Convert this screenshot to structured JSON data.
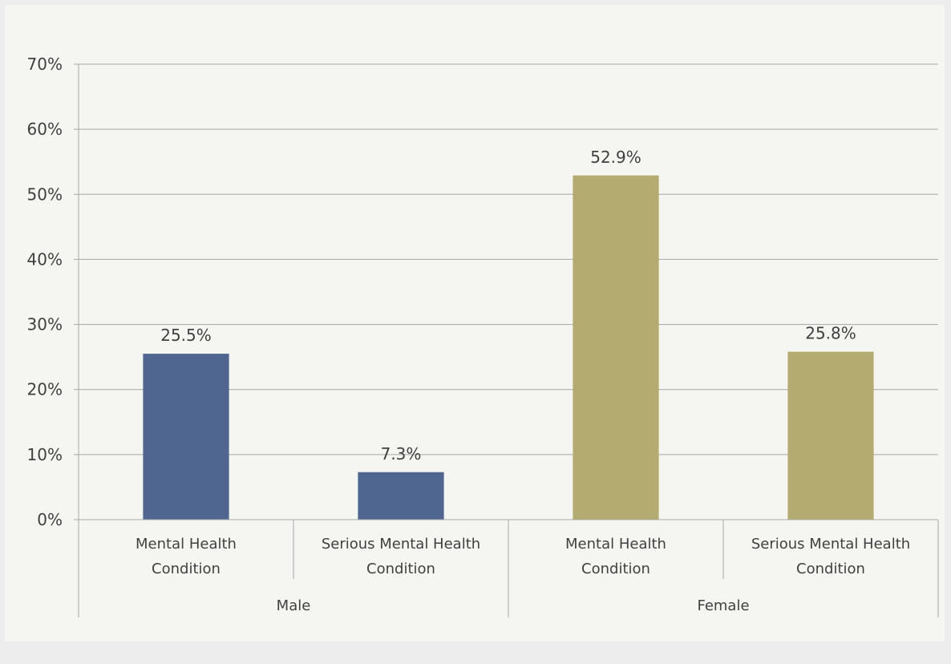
{
  "chart_data": {
    "type": "bar",
    "title": "",
    "xlabel": "",
    "ylabel": "",
    "ylim": [
      0,
      70
    ],
    "y_ticks": [
      0,
      10,
      20,
      30,
      40,
      50,
      60,
      70
    ],
    "y_tick_suffix": "%",
    "grid": true,
    "legend": "none",
    "groups": [
      {
        "label": "Male",
        "color": "#4e6690",
        "bars": [
          {
            "category": [
              "Mental Health",
              "Condition"
            ],
            "value": 25.5,
            "label": "25.5%"
          },
          {
            "category": [
              "Serious Mental Health",
              "Condition"
            ],
            "value": 7.3,
            "label": "7.3%"
          }
        ]
      },
      {
        "label": "Female",
        "color": "#b3ab70",
        "bars": [
          {
            "category": [
              "Mental Health",
              "Condition"
            ],
            "value": 52.9,
            "label": "52.9%"
          },
          {
            "category": [
              "Serious Mental Health",
              "Condition"
            ],
            "value": 25.8,
            "label": "25.8%"
          }
        ]
      }
    ]
  }
}
